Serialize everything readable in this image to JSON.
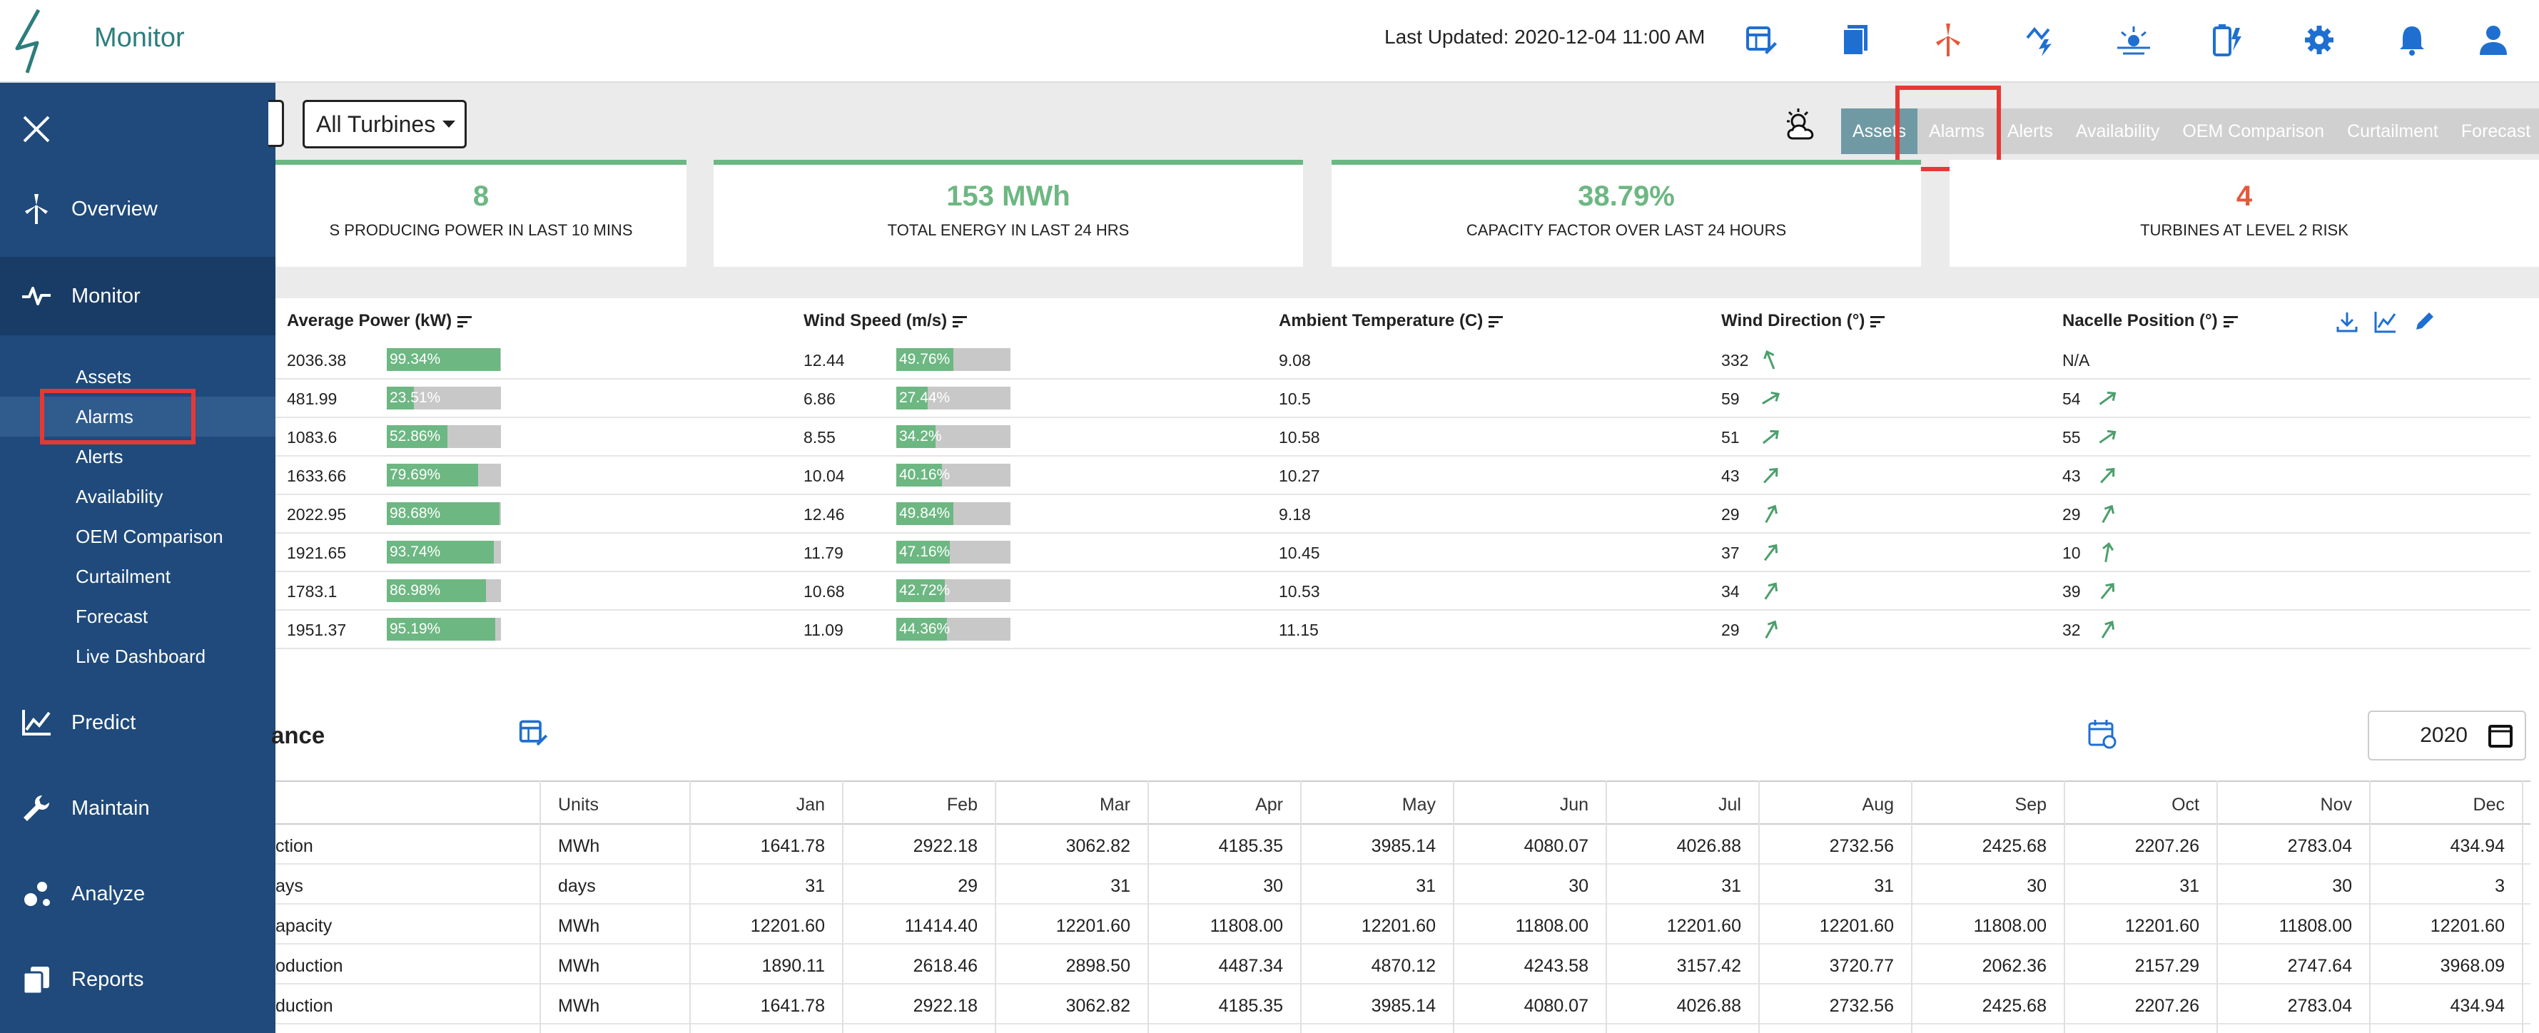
{
  "header": {
    "app_title": "Monitor",
    "last_updated": "Last Updated: 2020-12-04 11:00 AM",
    "icons": [
      "table-edit-icon",
      "document-icon",
      "wind-turbine-icon",
      "weather-power-icon",
      "sun-horizon-icon",
      "battery-charge-icon",
      "gear-icon",
      "bell-icon",
      "user-icon"
    ],
    "accent_color": "#e25a3b"
  },
  "sidebar": {
    "items": [
      {
        "label": "Overview",
        "icon": "turbine-icon"
      },
      {
        "label": "Monitor",
        "icon": "pulse-icon"
      },
      {
        "label": "Predict",
        "icon": "line-chart-icon"
      },
      {
        "label": "Maintain",
        "icon": "wrench-icon"
      },
      {
        "label": "Analyze",
        "icon": "molecule-icon"
      },
      {
        "label": "Reports",
        "icon": "copy-icon"
      }
    ],
    "sub_items": [
      "Assets",
      "Alarms",
      "Alerts",
      "Availability",
      "OEM Comparison",
      "Curtailment",
      "Forecast",
      "Live Dashboard"
    ],
    "background": "#1f4a7b"
  },
  "filter": {
    "selected": "All Turbines"
  },
  "tabs": [
    "Assets",
    "Alarms",
    "Alerts",
    "Availability",
    "OEM Comparison",
    "Curtailment",
    "Forecast"
  ],
  "kpis": [
    {
      "value": "8",
      "label": "S PRODUCING POWER IN LAST 10 MINS"
    },
    {
      "value": "153 MWh",
      "label": "TOTAL ENERGY IN LAST 24 HRS"
    },
    {
      "value": "38.79%",
      "label": "CAPACITY FACTOR OVER LAST 24 HOURS"
    },
    {
      "value": "4",
      "label": "TURBINES AT LEVEL 2 RISK"
    }
  ],
  "turbine_table": {
    "headers": [
      "Average Power (kW)",
      "Wind Speed (m/s)",
      "Ambient Temperature (C)",
      "Wind Direction (°)",
      "Nacelle Position (°)"
    ],
    "rows": [
      {
        "power": "2036.38",
        "power_pct": "99.34%",
        "power_frac": 0.9934,
        "wind": "12.44",
        "wind_pct": "49.76%",
        "wind_frac": 0.4976,
        "temp": "9.08",
        "dir": "332",
        "nacelle": "N/A"
      },
      {
        "power": "481.99",
        "power_pct": "23.51%",
        "power_frac": 0.2351,
        "wind": "6.86",
        "wind_pct": "27.44%",
        "wind_frac": 0.2744,
        "temp": "10.5",
        "dir": "59",
        "nacelle": "54"
      },
      {
        "power": "1083.6",
        "power_pct": "52.86%",
        "power_frac": 0.5286,
        "wind": "8.55",
        "wind_pct": "34.2%",
        "wind_frac": 0.342,
        "temp": "10.58",
        "dir": "51",
        "nacelle": "55"
      },
      {
        "power": "1633.66",
        "power_pct": "79.69%",
        "power_frac": 0.7969,
        "wind": "10.04",
        "wind_pct": "40.16%",
        "wind_frac": 0.4016,
        "temp": "10.27",
        "dir": "43",
        "nacelle": "43"
      },
      {
        "power": "2022.95",
        "power_pct": "98.68%",
        "power_frac": 0.9868,
        "wind": "12.46",
        "wind_pct": "49.84%",
        "wind_frac": 0.4984,
        "temp": "9.18",
        "dir": "29",
        "nacelle": "29"
      },
      {
        "power": "1921.65",
        "power_pct": "93.74%",
        "power_frac": 0.9374,
        "wind": "11.79",
        "wind_pct": "47.16%",
        "wind_frac": 0.4716,
        "temp": "10.45",
        "dir": "37",
        "nacelle": "10"
      },
      {
        "power": "1783.1",
        "power_pct": "86.98%",
        "power_frac": 0.8698,
        "wind": "10.68",
        "wind_pct": "42.72%",
        "wind_frac": 0.4272,
        "temp": "10.53",
        "dir": "34",
        "nacelle": "39"
      },
      {
        "power": "1951.37",
        "power_pct": "95.19%",
        "power_frac": 0.9519,
        "wind": "11.09",
        "wind_pct": "44.36%",
        "wind_frac": 0.4436,
        "temp": "11.15",
        "dir": "29",
        "nacelle": "32"
      }
    ]
  },
  "monthly": {
    "title": "ance",
    "year": "2020",
    "headers": [
      "Units",
      "Jan",
      "Feb",
      "Mar",
      "Apr",
      "May",
      "Jun",
      "Jul",
      "Aug",
      "Sep",
      "Oct",
      "Nov",
      "Dec"
    ],
    "rows": [
      {
        "label": "ction",
        "units": "MWh",
        "values": [
          "1641.78",
          "2922.18",
          "3062.82",
          "4185.35",
          "3985.14",
          "4080.07",
          "4026.88",
          "2732.56",
          "2425.68",
          "2207.26",
          "2783.04",
          "434.94"
        ]
      },
      {
        "label": "ays",
        "units": "days",
        "values": [
          "31",
          "29",
          "31",
          "30",
          "31",
          "30",
          "31",
          "31",
          "30",
          "31",
          "30",
          "3"
        ]
      },
      {
        "label": "apacity",
        "units": "MWh",
        "values": [
          "12201.60",
          "11414.40",
          "12201.60",
          "11808.00",
          "12201.60",
          "11808.00",
          "12201.60",
          "12201.60",
          "11808.00",
          "12201.60",
          "11808.00",
          "12201.60"
        ]
      },
      {
        "label": "oduction",
        "units": "MWh",
        "values": [
          "1890.11",
          "2618.46",
          "2898.50",
          "4487.34",
          "4870.12",
          "4243.58",
          "3157.42",
          "3720.77",
          "2062.36",
          "2157.29",
          "2747.64",
          "3968.09"
        ]
      },
      {
        "label": "duction",
        "units": "MWh",
        "values": [
          "1641.78",
          "2922.18",
          "3062.82",
          "4185.35",
          "3985.14",
          "4080.07",
          "4026.88",
          "2732.56",
          "2425.68",
          "2207.26",
          "2783.04",
          "434.94"
        ]
      }
    ]
  }
}
